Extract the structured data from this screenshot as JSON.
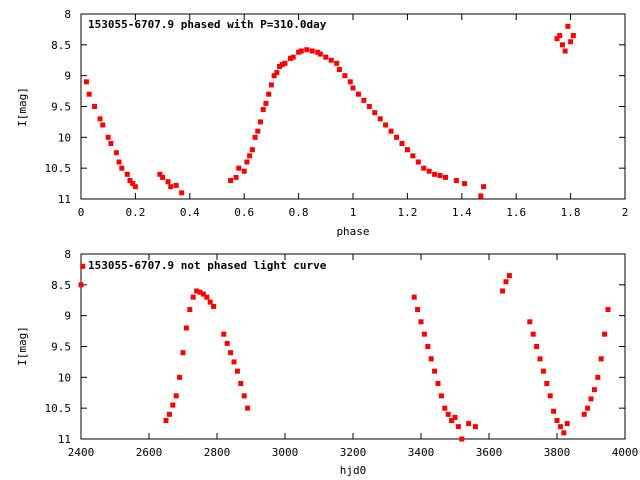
{
  "chart_data": [
    {
      "type": "scatter",
      "title": "153055-6707.9 phased with P=310.0day",
      "xlabel": "phase",
      "ylabel": "I[mag]",
      "xlim": [
        0,
        2
      ],
      "ylim": [
        11,
        8
      ],
      "y_inverted": true,
      "grid": false,
      "x_ticks": [
        "0",
        "0.2",
        "0.4",
        "0.6",
        "0.8",
        "1",
        "1.2",
        "1.4",
        "1.6",
        "1.8",
        "2"
      ],
      "y_ticks": [
        "8",
        "8.5",
        "9",
        "9.5",
        "10",
        "10.5",
        "11"
      ],
      "marker_color": "#ff0000",
      "series": [
        {
          "x": [
            0.02,
            0.03,
            0.05,
            0.07,
            0.08,
            0.1,
            0.11,
            0.13,
            0.14,
            0.15,
            0.17,
            0.18,
            0.19,
            0.2,
            0.29,
            0.3,
            0.32,
            0.33,
            0.35,
            0.37,
            0.55,
            0.57,
            0.58,
            0.6,
            0.61,
            0.62,
            0.63,
            0.64,
            0.65,
            0.66,
            0.67,
            0.68,
            0.69,
            0.7,
            0.71,
            0.72,
            0.73,
            0.74,
            0.75,
            0.77,
            0.78,
            0.8,
            0.81,
            0.83,
            0.85,
            0.87,
            0.88,
            0.9,
            0.92,
            0.94,
            0.95,
            0.97,
            0.99,
            1.0,
            1.02,
            1.04,
            1.06,
            1.08,
            1.1,
            1.12,
            1.14,
            1.16,
            1.18,
            1.2,
            1.22,
            1.24,
            1.26,
            1.28,
            1.3,
            1.32,
            1.34,
            1.38,
            1.41,
            1.47,
            1.48,
            1.75,
            1.76,
            1.77,
            1.78,
            1.79,
            1.8,
            1.81
          ],
          "y": [
            9.1,
            9.3,
            9.5,
            9.7,
            9.8,
            10.0,
            10.1,
            10.25,
            10.4,
            10.5,
            10.6,
            10.7,
            10.75,
            10.8,
            10.6,
            10.65,
            10.72,
            10.8,
            10.78,
            10.9,
            10.7,
            10.65,
            10.5,
            10.55,
            10.4,
            10.3,
            10.2,
            10.0,
            9.9,
            9.75,
            9.55,
            9.45,
            9.3,
            9.15,
            9.0,
            8.95,
            8.85,
            8.82,
            8.8,
            8.72,
            8.7,
            8.62,
            8.6,
            8.58,
            8.6,
            8.62,
            8.65,
            8.7,
            8.75,
            8.8,
            8.9,
            9.0,
            9.1,
            9.2,
            9.3,
            9.4,
            9.5,
            9.6,
            9.7,
            9.8,
            9.9,
            10.0,
            10.1,
            10.2,
            10.3,
            10.4,
            10.5,
            10.55,
            10.6,
            10.62,
            10.65,
            10.7,
            10.75,
            10.95,
            10.8,
            8.4,
            8.35,
            8.5,
            8.6,
            8.2,
            8.45,
            8.35
          ]
        }
      ]
    },
    {
      "type": "scatter",
      "title": "153055-6707.9 not phased light curve",
      "xlabel": "hjd0",
      "ylabel": "I[mag]",
      "xlim": [
        2400,
        4000
      ],
      "ylim": [
        11,
        8
      ],
      "y_inverted": true,
      "grid": false,
      "x_ticks": [
        "2400",
        "2600",
        "2800",
        "3000",
        "3200",
        "3400",
        "3600",
        "3800",
        "4000"
      ],
      "y_ticks": [
        "8",
        "8.5",
        "9",
        "9.5",
        "10",
        "10.5",
        "11"
      ],
      "marker_color": "#ff0000",
      "series": [
        {
          "x": [
            2400,
            2405,
            2650,
            2660,
            2670,
            2680,
            2690,
            2700,
            2710,
            2720,
            2730,
            2740,
            2750,
            2760,
            2770,
            2780,
            2790,
            2820,
            2830,
            2840,
            2850,
            2860,
            2870,
            2880,
            2890,
            3380,
            3390,
            3400,
            3410,
            3420,
            3430,
            3440,
            3450,
            3460,
            3470,
            3480,
            3490,
            3500,
            3510,
            3520,
            3540,
            3560,
            3640,
            3650,
            3660,
            3720,
            3730,
            3740,
            3750,
            3760,
            3770,
            3780,
            3790,
            3800,
            3810,
            3820,
            3830,
            3880,
            3890,
            3900,
            3910,
            3920,
            3930,
            3940,
            3950
          ],
          "y": [
            8.5,
            8.2,
            10.7,
            10.6,
            10.45,
            10.3,
            10.0,
            9.6,
            9.2,
            8.9,
            8.7,
            8.6,
            8.62,
            8.65,
            8.7,
            8.78,
            8.85,
            9.3,
            9.45,
            9.6,
            9.75,
            9.9,
            10.1,
            10.3,
            10.5,
            8.7,
            8.9,
            9.1,
            9.3,
            9.5,
            9.7,
            9.9,
            10.1,
            10.3,
            10.5,
            10.6,
            10.7,
            10.65,
            10.8,
            11.0,
            10.75,
            10.8,
            8.6,
            8.45,
            8.35,
            9.1,
            9.3,
            9.5,
            9.7,
            9.9,
            10.1,
            10.3,
            10.55,
            10.7,
            10.8,
            10.9,
            10.75,
            10.6,
            10.5,
            10.35,
            10.2,
            10.0,
            9.7,
            9.3,
            8.9
          ]
        }
      ]
    }
  ]
}
